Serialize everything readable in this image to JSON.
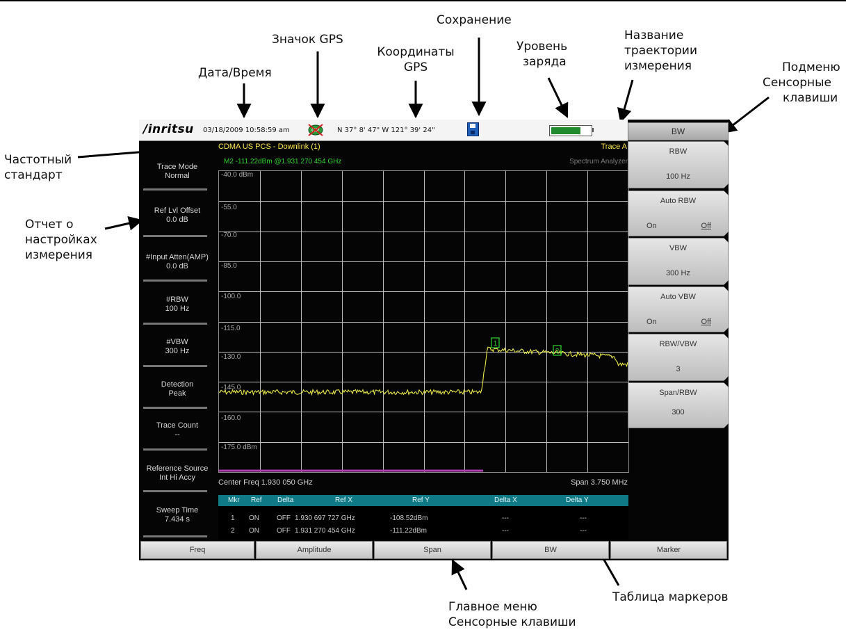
{
  "callouts": {
    "save": "Сохранение",
    "gps_icon": "Значок GPS",
    "gps_coords_l1": "Координаты",
    "gps_coords_l2": "GPS",
    "battery_l1": "Уровень",
    "battery_l2": "заряда",
    "trace_name_l1": "Название",
    "trace_name_l2": "траектории",
    "trace_name_l3": "измерения",
    "submenu_l1": "Подменю",
    "submenu_l2": "Сенсорные",
    "submenu_l3": "клавиши",
    "datetime": "Дата/Время",
    "freq_standard_l1": "Частотный",
    "freq_standard_l2": "стандарт",
    "settings_report_l1": "Отчет о",
    "settings_report_l2": "настройках",
    "settings_report_l3": "измерения",
    "main_menu_l1": "Главное меню",
    "main_menu_l2": "Сенсорные клавиши",
    "marker_table": "Таблица маркеров"
  },
  "status_bar": {
    "logo": "/inritsu",
    "datetime": "03/18/2009 10:58:59 am",
    "gps_coords": "N 37° 8' 47\" W 121° 39' 24\"",
    "battery_level": 0.75,
    "battery_color": "#1f8a2e"
  },
  "header": {
    "standard": "CDMA US PCS - Downlink (1)",
    "trace": "Trace A",
    "marker_readout": "M2 -111.22dBm @1.931 270 454 GHz",
    "mode": "Spectrum Analyzer"
  },
  "left_panel": [
    {
      "title": "Trace Mode",
      "value": "Normal"
    },
    {
      "title": "Ref Lvl Offset",
      "value": "0.0 dB"
    },
    {
      "title": "#Input Atten(AMP)",
      "value": "0.0 dB"
    },
    {
      "title": "#RBW",
      "value": "100 Hz"
    },
    {
      "title": "#VBW",
      "value": "300 Hz"
    },
    {
      "title": "Detection",
      "value": "Peak"
    },
    {
      "title": "Trace Count",
      "value": "--"
    },
    {
      "title": "Reference Source",
      "value": "Int Hi Accy"
    },
    {
      "title": "Sweep Time",
      "value": "7.434 s"
    }
  ],
  "plot": {
    "y_labels": [
      "-40.0 dBm",
      "-55.0",
      "-70.0",
      "-85.0",
      "-100.0",
      "-115.0",
      "-130.0",
      "-145.0",
      "-160.0",
      "-175.0 dBm"
    ],
    "trace_color": "#e8e84a",
    "center_freq": "Center Freq 1.930 050 GHz",
    "span": "Span 3.750 MHz",
    "markers": [
      "1",
      "2"
    ]
  },
  "marker_table": {
    "headers": [
      "Mkr",
      "Ref",
      "Delta",
      "Ref X",
      "Ref Y",
      "Delta X",
      "Delta Y"
    ],
    "rows": [
      [
        "1",
        "ON",
        "OFF",
        "1.930 697 727 GHz",
        "-108.52dBm",
        "---",
        "---"
      ],
      [
        "2",
        "ON",
        "OFF",
        "1.931 270 454 GHz",
        "-111.22dBm",
        "---",
        "---"
      ]
    ]
  },
  "submenu": {
    "title": "BW",
    "keys": [
      {
        "title": "RBW",
        "value": "100 Hz"
      },
      {
        "title": "Auto RBW",
        "on": "On",
        "off": "Off"
      },
      {
        "title": "VBW",
        "value": "300 Hz"
      },
      {
        "title": "Auto VBW",
        "on": "On",
        "off": "Off"
      },
      {
        "title": "RBW/VBW",
        "value": "3"
      },
      {
        "title": "Span/RBW",
        "value": "300"
      }
    ]
  },
  "main_menu": [
    "Freq",
    "Amplitude",
    "Span",
    "BW",
    "Marker"
  ]
}
